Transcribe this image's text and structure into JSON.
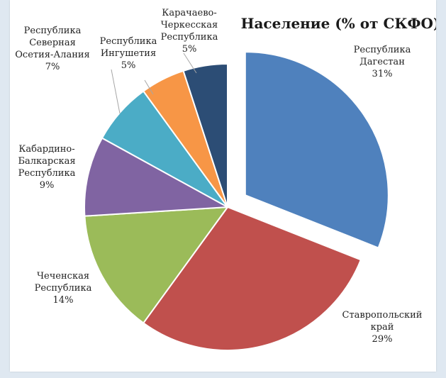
{
  "chart_data": {
    "type": "pie",
    "title": "Население (% от СКФО)",
    "slices": [
      {
        "label": [
          "Республика",
          "Дагестан"
        ],
        "value": 31,
        "value_label": "31%",
        "color": "#4f81bd",
        "exploded": true
      },
      {
        "label": [
          "Ставропольский",
          "край"
        ],
        "value": 29,
        "value_label": "29%",
        "color": "#c0504d",
        "exploded": false
      },
      {
        "label": [
          "Чеченская",
          "Республика"
        ],
        "value": 14,
        "value_label": "14%",
        "color": "#9bbb59",
        "exploded": false
      },
      {
        "label": [
          "Кабардино-",
          "Балкарская",
          "Республика"
        ],
        "value": 9,
        "value_label": "9%",
        "color": "#8064a2",
        "exploded": false
      },
      {
        "label": [
          "Республика",
          "Северная",
          "Осетия-Алания"
        ],
        "value": 7,
        "value_label": "7%",
        "color": "#4bacc6",
        "exploded": false
      },
      {
        "label": [
          "Республика",
          "Ингушетия"
        ],
        "value": 5,
        "value_label": "5%",
        "color": "#f79646",
        "exploded": false
      },
      {
        "label": [
          "Карачаево-",
          "Черкесская",
          "Республика"
        ],
        "value": 5,
        "value_label": "5%",
        "color": "#2c4d75",
        "exploded": false
      }
    ]
  }
}
